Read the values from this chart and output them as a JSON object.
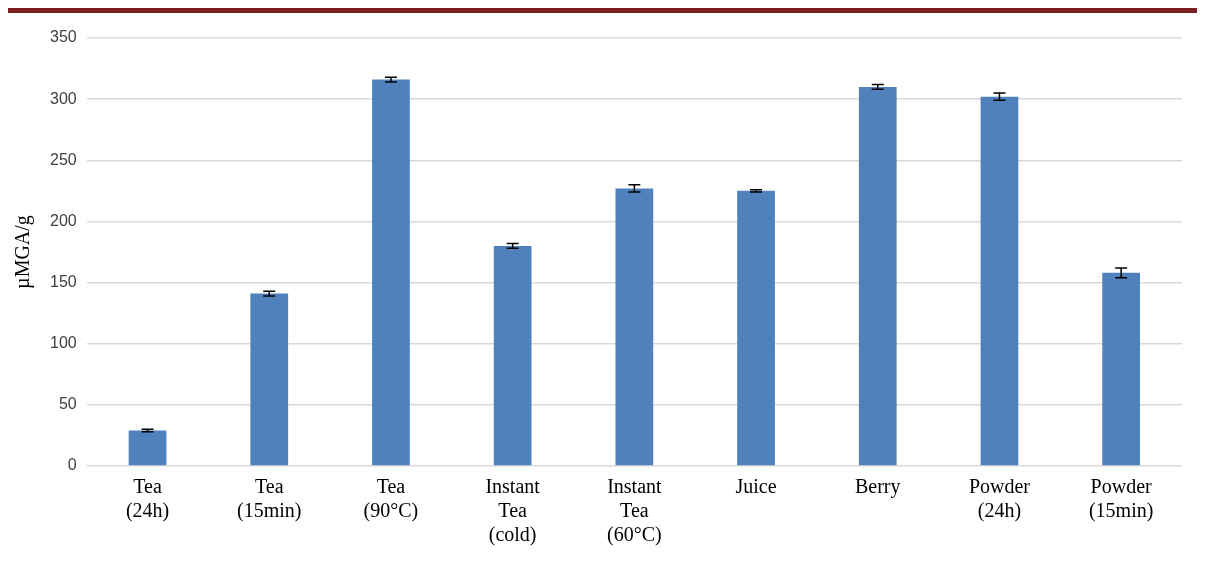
{
  "chart_data": {
    "type": "bar",
    "ylabel": "µMGA/g",
    "categories": [
      "Tea (24h)",
      "Tea (15min)",
      "Tea (90°C)",
      "Instant Tea (cold)",
      "Instant Tea (60°C)",
      "Juice",
      "Berry",
      "Powder (24h)",
      "Powder (15min)"
    ],
    "values": [
      29,
      141,
      316,
      180,
      227,
      225,
      310,
      302,
      158
    ],
    "errors": [
      1,
      2,
      2,
      2,
      3,
      1,
      2,
      3,
      4
    ],
    "color": "#4f81bd",
    "ylim": [
      0,
      350
    ],
    "yticks": [
      0,
      50,
      100,
      150,
      200,
      250,
      300,
      350
    ],
    "grid": "y",
    "legend": false
  }
}
